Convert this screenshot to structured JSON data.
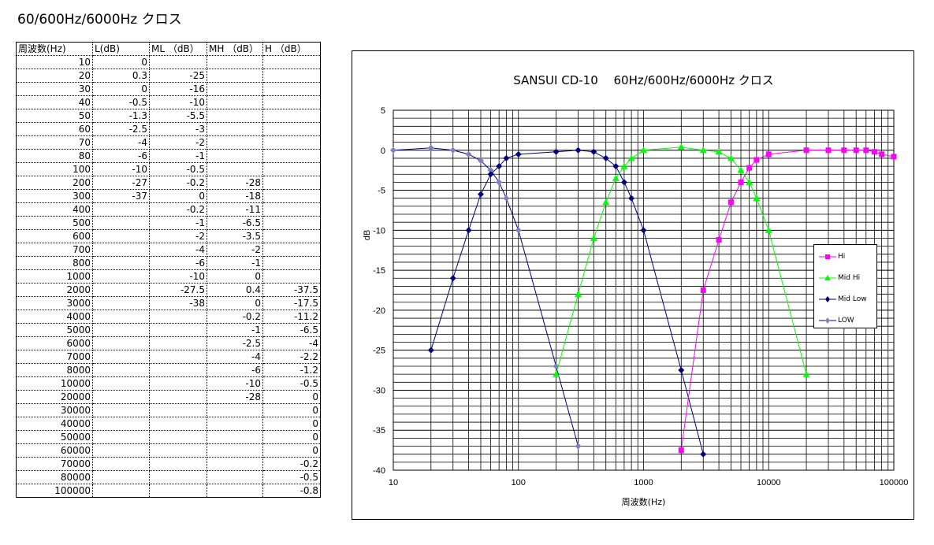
{
  "sheet": {
    "title": "60/600Hz/6000Hz クロス"
  },
  "table": {
    "headers": [
      "周波数(Hz)",
      "L(dB)",
      "ML （dB）",
      "MH （dB）",
      "H （dB）"
    ],
    "rows": [
      [
        "10",
        "0",
        "",
        "",
        ""
      ],
      [
        "20",
        "0.3",
        "-25",
        "",
        ""
      ],
      [
        "30",
        "0",
        "-16",
        "",
        ""
      ],
      [
        "40",
        "-0.5",
        "-10",
        "",
        ""
      ],
      [
        "50",
        "-1.3",
        "-5.5",
        "",
        ""
      ],
      [
        "60",
        "-2.5",
        "-3",
        "",
        ""
      ],
      [
        "70",
        "-4",
        "-2",
        "",
        ""
      ],
      [
        "80",
        "-6",
        "-1",
        "",
        ""
      ],
      [
        "100",
        "-10",
        "-0.5",
        "",
        ""
      ],
      [
        "200",
        "-27",
        "-0.2",
        "-28",
        ""
      ],
      [
        "300",
        "-37",
        "0",
        "-18",
        ""
      ],
      [
        "400",
        "",
        "-0.2",
        "-11",
        ""
      ],
      [
        "500",
        "",
        "-1",
        "-6.5",
        ""
      ],
      [
        "600",
        "",
        "-2",
        "-3.5",
        ""
      ],
      [
        "700",
        "",
        "-4",
        "-2",
        ""
      ],
      [
        "800",
        "",
        "-6",
        "-1",
        ""
      ],
      [
        "1000",
        "",
        "-10",
        "0",
        ""
      ],
      [
        "2000",
        "",
        "-27.5",
        "0.4",
        "-37.5"
      ],
      [
        "3000",
        "",
        "-38",
        "0",
        "-17.5"
      ],
      [
        "4000",
        "",
        "",
        "-0.2",
        "-11.2"
      ],
      [
        "5000",
        "",
        "",
        "-1",
        "-6.5"
      ],
      [
        "6000",
        "",
        "",
        "-2.5",
        "-4"
      ],
      [
        "7000",
        "",
        "",
        "-4",
        "-2.2"
      ],
      [
        "8000",
        "",
        "",
        "-6",
        "-1.2"
      ],
      [
        "10000",
        "",
        "",
        "-10",
        "-0.5"
      ],
      [
        "20000",
        "",
        "",
        "-28",
        "0"
      ],
      [
        "30000",
        "",
        "",
        "",
        "0"
      ],
      [
        "40000",
        "",
        "",
        "",
        "0"
      ],
      [
        "50000",
        "",
        "",
        "",
        "0"
      ],
      [
        "60000",
        "",
        "",
        "",
        "0"
      ],
      [
        "70000",
        "",
        "",
        "",
        "-0.2"
      ],
      [
        "80000",
        "",
        "",
        "",
        "-0.5"
      ],
      [
        "100000",
        "",
        "",
        "",
        "-0.8"
      ]
    ]
  },
  "chart_data": {
    "type": "line",
    "title": "SANSUI CD-10　 60Hz/600Hz/6000Hz クロス",
    "xlabel": "周波数(Hz)",
    "ylabel": "dB",
    "xscale": "log",
    "xlim": [
      10,
      100000
    ],
    "ylim": [
      -40,
      5
    ],
    "grid": true,
    "legend_position": "right",
    "x_tick_labels": [
      "10",
      "100",
      "1000",
      "10000",
      "100000"
    ],
    "y_tick_labels": [
      "5",
      "0",
      "-5",
      "-10",
      "-15",
      "-20",
      "-25",
      "-30",
      "-35",
      "-40"
    ],
    "series": [
      {
        "name": "Hi",
        "color": "#ff00ff",
        "marker": "square",
        "points": [
          [
            2000,
            -37.5
          ],
          [
            3000,
            -17.5
          ],
          [
            4000,
            -11.2
          ],
          [
            5000,
            -6.5
          ],
          [
            6000,
            -4
          ],
          [
            7000,
            -2.2
          ],
          [
            8000,
            -1.2
          ],
          [
            10000,
            -0.5
          ],
          [
            20000,
            0
          ],
          [
            30000,
            0
          ],
          [
            40000,
            0
          ],
          [
            50000,
            0
          ],
          [
            60000,
            0
          ],
          [
            70000,
            -0.2
          ],
          [
            80000,
            -0.5
          ],
          [
            100000,
            -0.8
          ]
        ]
      },
      {
        "name": "Mid Hi",
        "color": "#00ff00",
        "marker": "triangle",
        "points": [
          [
            200,
            -28
          ],
          [
            300,
            -18
          ],
          [
            400,
            -11
          ],
          [
            500,
            -6.5
          ],
          [
            600,
            -3.5
          ],
          [
            700,
            -2
          ],
          [
            800,
            -1
          ],
          [
            1000,
            0
          ],
          [
            2000,
            0.4
          ],
          [
            3000,
            0
          ],
          [
            4000,
            -0.2
          ],
          [
            5000,
            -1
          ],
          [
            6000,
            -2.5
          ],
          [
            7000,
            -4
          ],
          [
            8000,
            -6
          ],
          [
            10000,
            -10
          ],
          [
            20000,
            -28
          ]
        ]
      },
      {
        "name": "Mid Low",
        "color": "#000080",
        "marker": "diamond",
        "points": [
          [
            20,
            -25
          ],
          [
            30,
            -16
          ],
          [
            40,
            -10
          ],
          [
            50,
            -5.5
          ],
          [
            60,
            -3
          ],
          [
            70,
            -2
          ],
          [
            80,
            -1
          ],
          [
            100,
            -0.5
          ],
          [
            200,
            -0.2
          ],
          [
            300,
            0
          ],
          [
            400,
            -0.2
          ],
          [
            500,
            -1
          ],
          [
            600,
            -2
          ],
          [
            700,
            -4
          ],
          [
            800,
            -6
          ],
          [
            1000,
            -10
          ],
          [
            2000,
            -27.5
          ],
          [
            3000,
            -38
          ]
        ]
      },
      {
        "name": "LOW",
        "color": "#8080c0",
        "marker": "diamond",
        "points": [
          [
            10,
            0
          ],
          [
            20,
            0.3
          ],
          [
            30,
            0
          ],
          [
            40,
            -0.5
          ],
          [
            50,
            -1.3
          ],
          [
            60,
            -2.5
          ],
          [
            70,
            -4
          ],
          [
            80,
            -6
          ],
          [
            100,
            -10
          ],
          [
            200,
            -27
          ],
          [
            300,
            -37
          ]
        ]
      }
    ]
  }
}
